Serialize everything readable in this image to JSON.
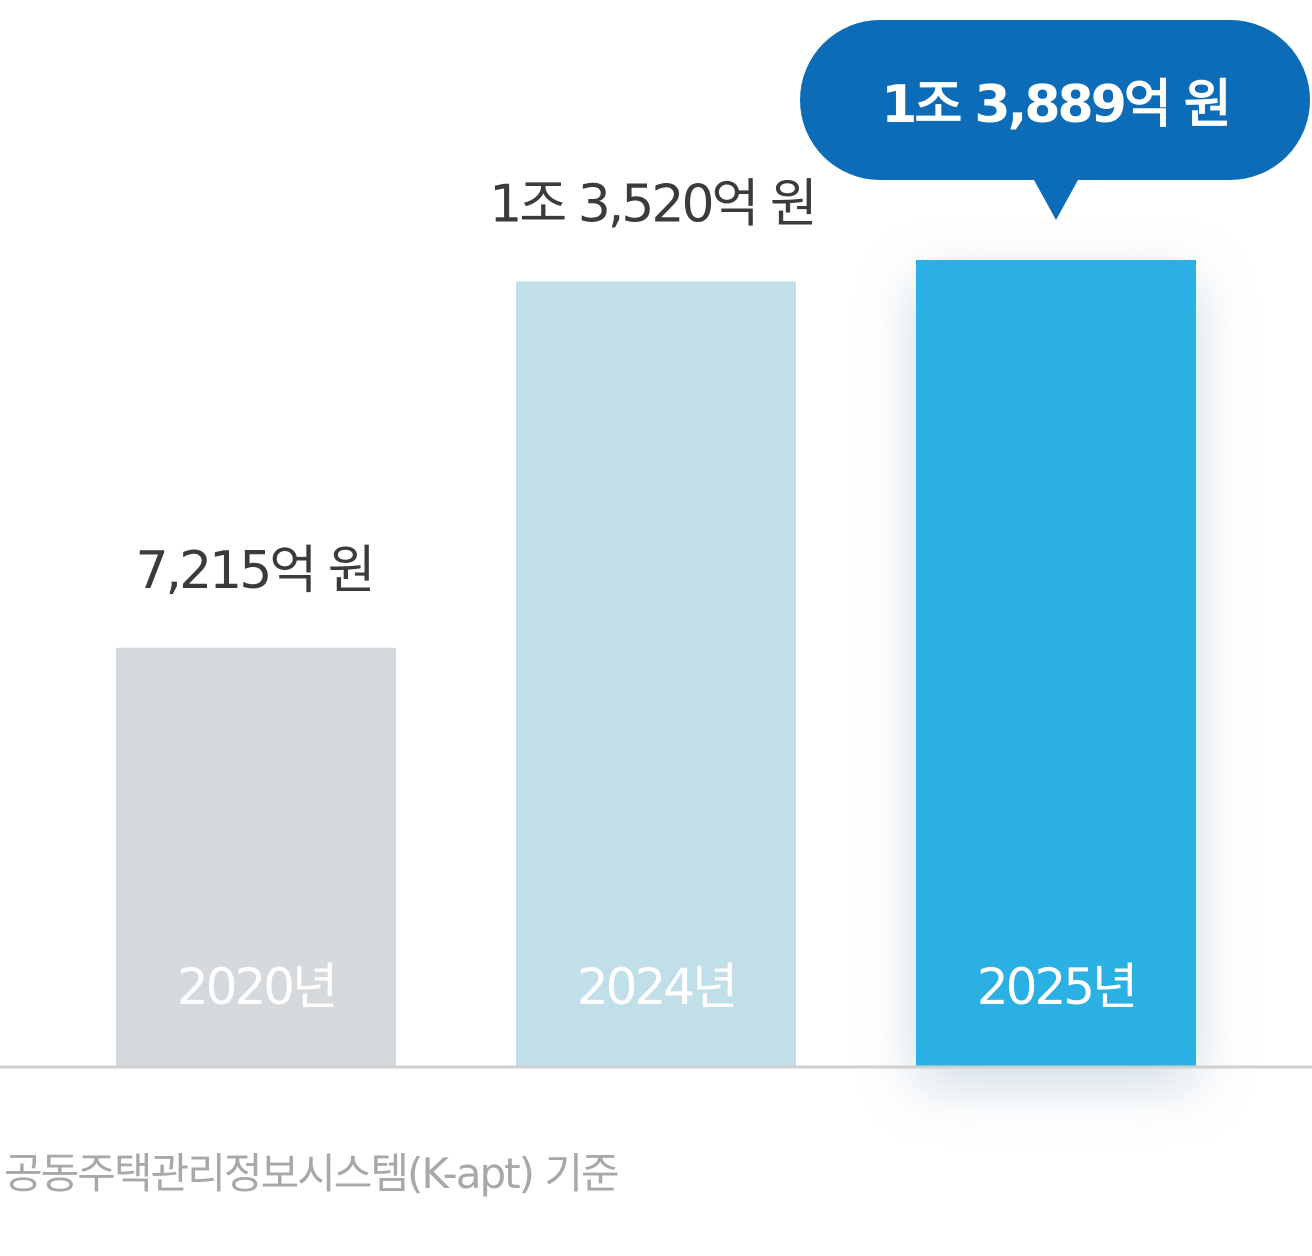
{
  "chart_data": {
    "type": "bar",
    "categories": [
      "2020년",
      "2024년",
      "2025년"
    ],
    "values": [
      7215,
      13520,
      13889
    ],
    "value_labels": [
      "7,215억 원",
      "1조 3,520억 원",
      "1조 3,889억 원"
    ],
    "unit": "억 원",
    "highlight_index": 2,
    "grid": false,
    "legend": "none",
    "colors": {
      "bars": [
        "#d5d9dc",
        "#c1dfe9",
        "#2bb0e2"
      ],
      "callout": "#0c6cb7",
      "axis": "#d0d0d0",
      "value_text": "#3b3b3b",
      "source_text": "#a8a8a8"
    }
  },
  "source_note": "공동주택관리정보시스템(K-apt) 기준"
}
